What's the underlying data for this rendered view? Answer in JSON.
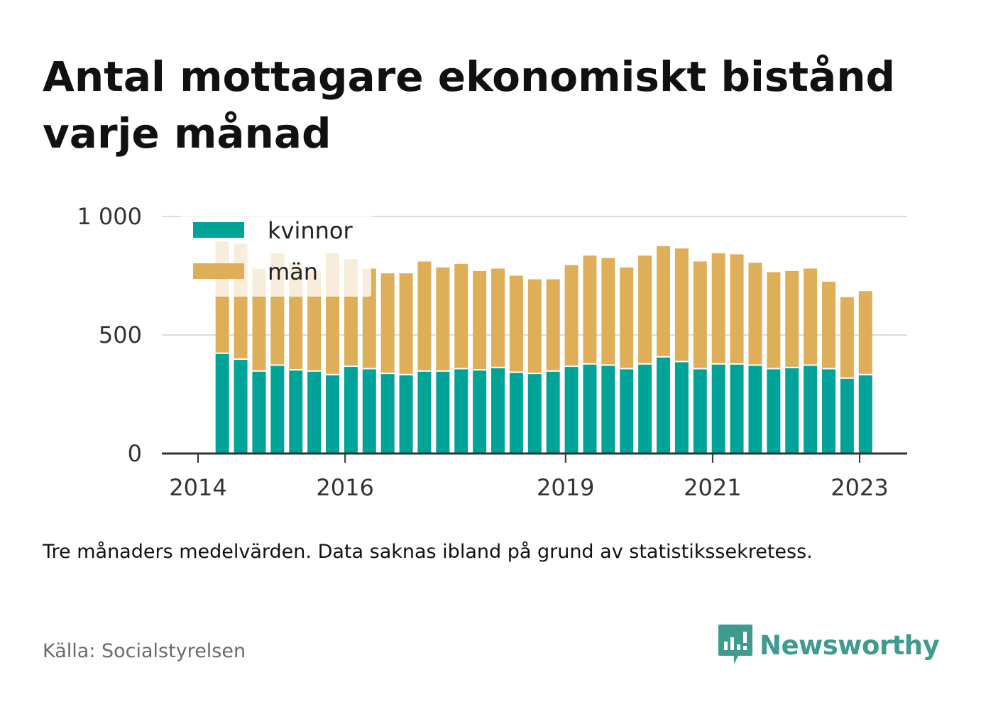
{
  "chart_data": {
    "type": "bar",
    "stacked": true,
    "title": "Antal mottagare ekonomiskt bistånd varje månad",
    "note": "Tre månaders medelvärden. Data saknas ibland på grund av statistikssekretess.",
    "source": "Källa: Socialstyrelsen",
    "ylim": [
      0,
      1000
    ],
    "y_ticks": [
      0,
      500,
      1000
    ],
    "y_tick_labels": [
      "0",
      "500",
      "1 000"
    ],
    "x_ticks": [
      2014,
      2016,
      2019,
      2021,
      2023
    ],
    "x_tick_labels": [
      "2014",
      "2016",
      "2019",
      "2021",
      "2023"
    ],
    "grid": true,
    "legend_position": "top-left",
    "x": [
      2014.33,
      2014.58,
      2014.83,
      2015.08,
      2015.33,
      2015.58,
      2015.83,
      2016.08,
      2016.33,
      2016.58,
      2016.83,
      2017.08,
      2017.33,
      2017.58,
      2017.83,
      2018.08,
      2018.33,
      2018.58,
      2018.83,
      2019.08,
      2019.33,
      2019.58,
      2019.83,
      2020.08,
      2020.33,
      2020.58,
      2020.83,
      2021.08,
      2021.33,
      2021.58,
      2021.83,
      2022.08,
      2022.33,
      2022.58,
      2022.83,
      2023.08
    ],
    "series": [
      {
        "name": "kvinnor",
        "color": "#00a398",
        "values": [
          420,
          395,
          345,
          370,
          350,
          345,
          330,
          365,
          355,
          335,
          330,
          345,
          345,
          355,
          350,
          360,
          340,
          335,
          345,
          365,
          375,
          370,
          355,
          375,
          405,
          385,
          355,
          375,
          375,
          370,
          355,
          360,
          370,
          355,
          315,
          330
        ]
      },
      {
        "name": "män",
        "color": "#deae58",
        "values": [
          475,
          490,
          435,
          475,
          455,
          425,
          515,
          455,
          425,
          425,
          430,
          465,
          440,
          445,
          420,
          420,
          410,
          400,
          390,
          430,
          460,
          455,
          430,
          460,
          470,
          480,
          455,
          470,
          465,
          435,
          410,
          410,
          410,
          370,
          345,
          355
        ]
      }
    ]
  },
  "brand": {
    "name": "Newsworthy"
  },
  "legend": {
    "labels": [
      "kvinnor",
      "män"
    ]
  }
}
